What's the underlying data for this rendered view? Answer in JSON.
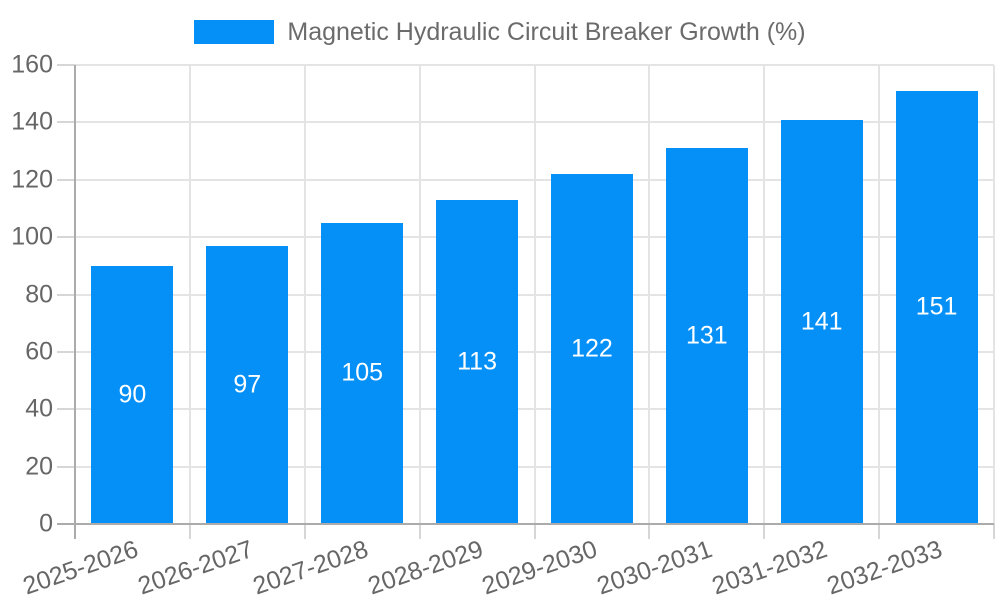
{
  "chart_data": {
    "type": "bar",
    "title": "",
    "legend": {
      "position": "top",
      "label": "Magnetic Hydraulic Circuit Breaker Growth (%)"
    },
    "categories": [
      "2025-2026",
      "2026-2027",
      "2027-2028",
      "2028-2029",
      "2029-2030",
      "2030-2031",
      "2031-2032",
      "2032-2033"
    ],
    "values": [
      90,
      97,
      105,
      113,
      122,
      131,
      141,
      151
    ],
    "value_labels_inside_bars": true,
    "xlabel": "",
    "ylabel": "",
    "ylim": [
      0,
      160
    ],
    "yticks": [
      0,
      20,
      40,
      60,
      80,
      100,
      120,
      140,
      160
    ],
    "grid": true,
    "colors": {
      "bar": "#0590F8",
      "value_label": "#ffffff",
      "grid": "#e4e4e4",
      "tick": "#d6d6d6",
      "axis": "#ababab",
      "text": "#666666",
      "legend_text": "#6b6b6b",
      "background": "#ffffff"
    }
  }
}
